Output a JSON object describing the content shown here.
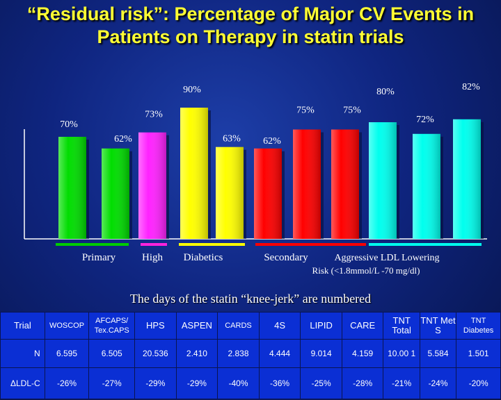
{
  "title": "“Residual risk”: Percentage of Major CV Events in Patients on Therapy in statin trials",
  "chart_data": {
    "type": "bar",
    "values": [
      70,
      62,
      73,
      90,
      63,
      62,
      75,
      75,
      80,
      72,
      82
    ],
    "value_labels": [
      "70%",
      "62%",
      "73%",
      "90%",
      "63%",
      "62%",
      "75%",
      "75%",
      "80%",
      "72%",
      "82%"
    ],
    "colors": [
      "#00dd00",
      "#00dd00",
      "#ff22ff",
      "#ffff00",
      "#ffff00",
      "#ff0000",
      "#ff0000",
      "#ff0000",
      "#00ffee",
      "#00ffee",
      "#00ffee"
    ],
    "groups": [
      {
        "label": "Primary",
        "color": "#00cc00"
      },
      {
        "label": "High",
        "color": "#ff22dd"
      },
      {
        "label": "Diabetics",
        "color": "#ffff00"
      },
      {
        "label": "Secondary",
        "color": "#ff0000"
      },
      {
        "label": "Aggressive LDL Lowering",
        "color": "#00ffee"
      }
    ],
    "group_note": "Risk (<1.8mmol/L -70 mg/dl)"
  },
  "subtitle": "The days of the statin “knee-jerk” are numbered",
  "table": {
    "headers": [
      "Trial",
      "WOSCOP",
      "AFCAPS/ Tex.CAPS",
      "HPS",
      "ASPEN",
      "CARDS",
      "4S",
      "LIPID",
      "CARE",
      "TNT Total",
      "TNT Met S",
      "TNT Diabetes"
    ],
    "rows": [
      [
        "N",
        "6.595",
        "6.505",
        "20.536",
        "2.410",
        "2.838",
        "4.444",
        "9.014",
        "4.159",
        "10.00 1",
        "5.584",
        "1.501"
      ],
      [
        "ΔLDL-C",
        "-26%",
        "-27%",
        "-29%",
        "-29%",
        "-40%",
        "-36%",
        "-25%",
        "-28%",
        "-21%",
        "-24%",
        "-20%"
      ]
    ]
  }
}
